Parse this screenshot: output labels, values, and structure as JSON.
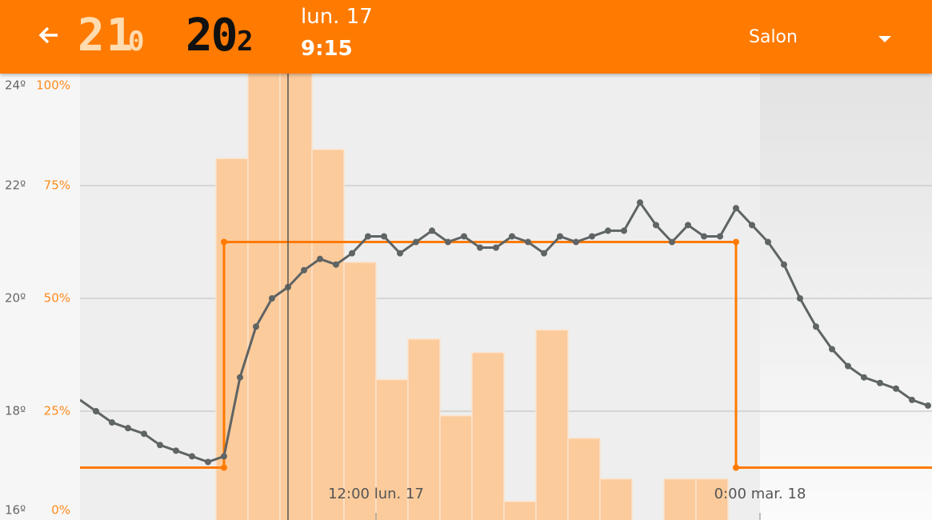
{
  "header": {
    "setpoint": "21",
    "setpoint_decimal": "0",
    "current": "20",
    "current_decimal": "2",
    "date": "lun. 17",
    "time": "9:15",
    "room": "Salon"
  },
  "chart_data": {
    "type": "combo",
    "xlim": [
      2.75,
      29.375
    ],
    "xticks": [
      {
        "value": 12,
        "label": "12:00 lun. 17"
      },
      {
        "value": 24,
        "label": "0:00 mar. 18"
      }
    ],
    "ylim": [
      16,
      24
    ],
    "yticks": [
      {
        "value": 16,
        "label": "16º"
      },
      {
        "value": 18,
        "label": "18º"
      },
      {
        "value": 20,
        "label": "20º"
      },
      {
        "value": 22,
        "label": "22º"
      },
      {
        "value": 24,
        "label": "24º"
      }
    ],
    "y2lim": [
      0,
      100
    ],
    "y2ticks": [
      {
        "value": 0,
        "label": "0%"
      },
      {
        "value": 25,
        "label": "25%"
      },
      {
        "value": 50,
        "label": "50%"
      },
      {
        "value": 75,
        "label": "75%"
      },
      {
        "value": 100,
        "label": "100%"
      }
    ],
    "grid": true,
    "cursor_x": 9.25,
    "series": [
      {
        "type": "bar",
        "axis": "y2",
        "color": "#fccb9b",
        "bins": [
          7,
          8,
          9,
          10,
          11,
          12,
          13,
          14,
          15,
          16,
          17,
          18,
          19,
          20,
          21,
          22,
          23
        ],
        "values": [
          81,
          100,
          100,
          83,
          58,
          32,
          41,
          24,
          38,
          5,
          43,
          19,
          10,
          0,
          10,
          10
        ]
      },
      {
        "type": "line",
        "color": "#ff7a00",
        "markers": true,
        "x": [
          2.75,
          7.25,
          7.25,
          23.25,
          23.25,
          29.375
        ],
        "values": [
          17,
          17,
          21,
          21,
          17,
          17
        ]
      },
      {
        "type": "line",
        "color": "#5f6464",
        "markers": true,
        "x": [
          2.75,
          3.25,
          3.75,
          4.25,
          4.75,
          5.25,
          5.75,
          6.25,
          6.75,
          7.25,
          7.75,
          8.25,
          8.75,
          9.25,
          9.75,
          10.25,
          10.75,
          11.25,
          11.75,
          12.25,
          12.75,
          13.25,
          13.75,
          14.25,
          14.75,
          15.25,
          15.75,
          16.25,
          16.75,
          17.25,
          17.75,
          18.25,
          18.75,
          19.25,
          19.75,
          20.25,
          20.75,
          21.25,
          21.75,
          22.25,
          22.75,
          23.25,
          23.75,
          24.25,
          24.75,
          25.25,
          25.75,
          26.25,
          26.75,
          27.25,
          27.75,
          28.25,
          28.75,
          29.25
        ],
        "values": [
          18.2,
          18.0,
          17.8,
          17.7,
          17.6,
          17.4,
          17.3,
          17.2,
          17.1,
          17.2,
          18.6,
          19.5,
          20.0,
          20.2,
          20.5,
          20.7,
          20.6,
          20.8,
          21.1,
          21.1,
          20.8,
          21.0,
          21.2,
          21.0,
          21.1,
          20.9,
          20.9,
          21.1,
          21.0,
          20.8,
          21.1,
          21.0,
          21.1,
          21.2,
          21.2,
          21.7,
          21.3,
          21.0,
          21.3,
          21.1,
          21.1,
          21.6,
          21.3,
          21.0,
          20.6,
          20.0,
          19.5,
          19.1,
          18.8,
          18.6,
          18.5,
          18.4,
          18.2,
          18.1
        ]
      }
    ]
  }
}
